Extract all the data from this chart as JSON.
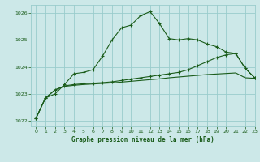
{
  "title": "Graphe pression niveau de la mer (hPa)",
  "background_color": "#cce8e8",
  "grid_color": "#99cccc",
  "line_color": "#1a5c1a",
  "xlim": [
    -0.5,
    23
  ],
  "ylim": [
    1021.8,
    1026.3
  ],
  "yticks": [
    1022,
    1023,
    1024,
    1025,
    1026
  ],
  "xticks": [
    0,
    1,
    2,
    3,
    4,
    5,
    6,
    7,
    8,
    9,
    10,
    11,
    12,
    13,
    14,
    15,
    16,
    17,
    18,
    19,
    20,
    21,
    22,
    23
  ],
  "s1_x": [
    0,
    1,
    2,
    3,
    4,
    5,
    6,
    7,
    8,
    9,
    10,
    11,
    12,
    13,
    14,
    15,
    16,
    17,
    18,
    19,
    20,
    21,
    22,
    23
  ],
  "s1_y": [
    1022.1,
    1022.85,
    1023.0,
    1023.35,
    1023.75,
    1023.8,
    1023.9,
    1024.4,
    1025.0,
    1025.45,
    1025.55,
    1025.9,
    1026.05,
    1025.6,
    1025.05,
    1025.0,
    1025.05,
    1025.0,
    1024.85,
    1024.75,
    1024.55,
    1024.5,
    1023.95,
    1023.6
  ],
  "s2_x": [
    0,
    1,
    2,
    3,
    4,
    5,
    6,
    7,
    8,
    9,
    10,
    11,
    12,
    13,
    14,
    15,
    16,
    17,
    18,
    19,
    20,
    21,
    22,
    23
  ],
  "s2_y": [
    1022.1,
    1022.85,
    1023.15,
    1023.3,
    1023.35,
    1023.38,
    1023.4,
    1023.42,
    1023.45,
    1023.5,
    1023.55,
    1023.6,
    1023.65,
    1023.7,
    1023.75,
    1023.8,
    1023.9,
    1024.05,
    1024.2,
    1024.35,
    1024.45,
    1024.5,
    1023.95,
    1023.6
  ],
  "s3_x": [
    0,
    1,
    2,
    3,
    4,
    5,
    6,
    7,
    8,
    9,
    10,
    11,
    12,
    13,
    14,
    15,
    16,
    17,
    18,
    19,
    20,
    21,
    22,
    23
  ],
  "s3_y": [
    1022.1,
    1022.85,
    1023.15,
    1023.28,
    1023.32,
    1023.35,
    1023.37,
    1023.39,
    1023.41,
    1023.44,
    1023.47,
    1023.5,
    1023.53,
    1023.56,
    1023.6,
    1023.63,
    1023.66,
    1023.69,
    1023.72,
    1023.74,
    1023.76,
    1023.78,
    1023.6,
    1023.58
  ]
}
